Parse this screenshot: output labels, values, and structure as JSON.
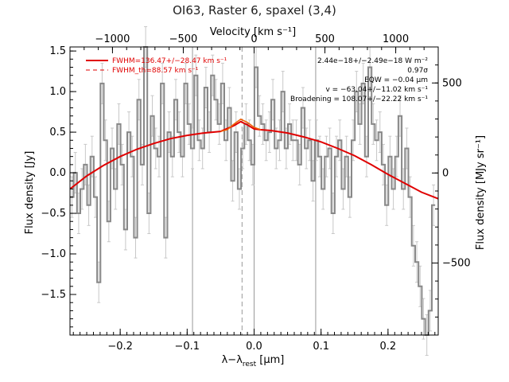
{
  "chart_data": {
    "type": "line",
    "title": "OI63, Raster 6, spaxel (3,4)",
    "xlabel": "λ−λ",
    "xlabel_sub": "rest",
    "xlabel_unit": " [μm]",
    "ylabel": "Flux density [Jy]",
    "ylabel_right": "Flux density [MJy sr⁻¹]",
    "top_axis_label": "Velocity [km s⁻¹]",
    "xlim": [
      -0.275,
      0.275
    ],
    "ylim": [
      -2.0,
      1.55
    ],
    "top_xlim": [
      -1300,
      1300
    ],
    "right_ylim": [
      -900,
      700
    ],
    "x_ticks": [
      "−0.2",
      "−0.1",
      "0.0",
      "0.1",
      "0.2"
    ],
    "x_tick_values": [
      -0.2,
      -0.1,
      0.0,
      0.1,
      0.2
    ],
    "y_ticks": [
      "−1.5",
      "−1.0",
      "−0.5",
      "0.0",
      "0.5",
      "1.0",
      "1.5"
    ],
    "y_tick_values": [
      -1.5,
      -1.0,
      -0.5,
      0.0,
      0.5,
      1.0,
      1.5
    ],
    "top_ticks": [
      "−1000",
      "−500",
      "0",
      "500",
      "1000"
    ],
    "top_tick_values": [
      -1000,
      -500,
      0,
      500,
      1000
    ],
    "right_ticks": [
      "500",
      "0",
      "−500"
    ],
    "right_tick_values": [
      500,
      0,
      -500
    ],
    "vertical_lines": [
      -0.092,
      0.0,
      0.092
    ],
    "dashed_line": -0.018,
    "legend": {
      "position": "top-left",
      "entries": [
        {
          "label": "FWHM=136.47+/−28.47 km s⁻¹",
          "style": "solid"
        },
        {
          "label": "FWHM_th=88.57 km s⁻¹",
          "style": "dashed"
        }
      ]
    },
    "annotations": [
      "2.44e−18+/−2.49e−18 W m⁻²",
      "0.97σ",
      "EQW = −0.04 μm",
      "v = −63.04+/−11.02 km s⁻¹",
      "Broadening = 108.07+/−22.22 km s⁻¹"
    ],
    "series": [
      {
        "style": "steps",
        "color": "#888888",
        "x": [
          -0.272,
          -0.267,
          -0.262,
          -0.257,
          -0.252,
          -0.247,
          -0.242,
          -0.237,
          -0.232,
          -0.227,
          -0.222,
          -0.217,
          -0.212,
          -0.207,
          -0.202,
          -0.197,
          -0.192,
          -0.187,
          -0.182,
          -0.177,
          -0.172,
          -0.167,
          -0.162,
          -0.157,
          -0.152,
          -0.147,
          -0.142,
          -0.137,
          -0.132,
          -0.127,
          -0.122,
          -0.117,
          -0.112,
          -0.107,
          -0.102,
          -0.097,
          -0.092,
          -0.087,
          -0.082,
          -0.077,
          -0.072,
          -0.067,
          -0.062,
          -0.057,
          -0.052,
          -0.047,
          -0.042,
          -0.037,
          -0.032,
          -0.027,
          -0.022,
          -0.017,
          -0.012,
          -0.007,
          -0.002,
          0.003,
          0.008,
          0.013,
          0.018,
          0.023,
          0.028,
          0.033,
          0.038,
          0.043,
          0.048,
          0.053,
          0.058,
          0.063,
          0.068,
          0.073,
          0.078,
          0.083,
          0.088,
          0.093,
          0.098,
          0.103,
          0.108,
          0.113,
          0.118,
          0.123,
          0.128,
          0.133,
          0.138,
          0.143,
          0.148,
          0.153,
          0.158,
          0.163,
          0.168,
          0.173,
          0.178,
          0.183,
          0.188,
          0.193,
          0.198,
          0.203,
          0.208,
          0.213,
          0.218,
          0.223,
          0.228,
          0.233,
          0.238,
          0.243,
          0.248,
          0.253,
          0.258,
          0.263,
          0.268
        ],
        "y": [
          -0.3,
          0.0,
          -0.5,
          -0.2,
          0.1,
          -0.4,
          0.2,
          -0.3,
          -1.35,
          1.1,
          0.4,
          -0.6,
          0.3,
          -0.2,
          0.6,
          0.1,
          -0.7,
          0.5,
          0.2,
          -0.8,
          0.9,
          0.1,
          1.55,
          -0.5,
          0.7,
          0.3,
          0.2,
          1.1,
          -0.8,
          0.5,
          0.2,
          0.9,
          0.5,
          0.2,
          1.1,
          0.6,
          0.3,
          1.2,
          0.4,
          0.3,
          1.05,
          0.5,
          1.2,
          0.9,
          0.6,
          1.1,
          0.4,
          0.8,
          -0.1,
          0.5,
          -0.2,
          0.3,
          0.6,
          0.4,
          0.1,
          1.3,
          0.7,
          0.6,
          0.4,
          0.5,
          0.9,
          0.3,
          0.4,
          1.0,
          0.3,
          0.6,
          0.4,
          0.4,
          0.1,
          0.8,
          0.3,
          0.4,
          -0.1,
          0.4,
          0.2,
          -0.2,
          0.2,
          0.3,
          -0.5,
          0.2,
          0.4,
          -0.2,
          0.2,
          -0.3,
          0.4,
          1.0,
          0.6,
          1.1,
          0.2,
          1.3,
          0.6,
          0.4,
          0.5,
          0.1,
          -0.4,
          0.2,
          -0.2,
          0.2,
          0.7,
          -0.2,
          0.3,
          -0.3,
          -0.9,
          -1.1,
          -1.4,
          -1.8,
          -2.0,
          -1.7,
          -0.4
        ],
        "err": 0.25
      },
      {
        "style": "line",
        "color": "#e00000",
        "x": [
          -0.275,
          -0.25,
          -0.225,
          -0.2,
          -0.175,
          -0.15,
          -0.125,
          -0.1,
          -0.075,
          -0.05,
          -0.03,
          -0.02,
          -0.01,
          0.0,
          0.01,
          0.025,
          0.05,
          0.075,
          0.1,
          0.125,
          0.15,
          0.175,
          0.2,
          0.225,
          0.25,
          0.275
        ],
        "y": [
          -0.2,
          -0.04,
          0.09,
          0.2,
          0.29,
          0.36,
          0.42,
          0.46,
          0.49,
          0.51,
          0.58,
          0.63,
          0.59,
          0.54,
          0.53,
          0.52,
          0.49,
          0.44,
          0.38,
          0.3,
          0.21,
          0.1,
          -0.02,
          -0.13,
          -0.24,
          -0.32
        ]
      },
      {
        "style": "line",
        "color": "#f06000",
        "x": [
          -0.05,
          -0.04,
          -0.03,
          -0.02,
          -0.01,
          0.0,
          0.01
        ],
        "y": [
          0.51,
          0.53,
          0.6,
          0.66,
          0.62,
          0.56,
          0.53
        ]
      }
    ]
  }
}
